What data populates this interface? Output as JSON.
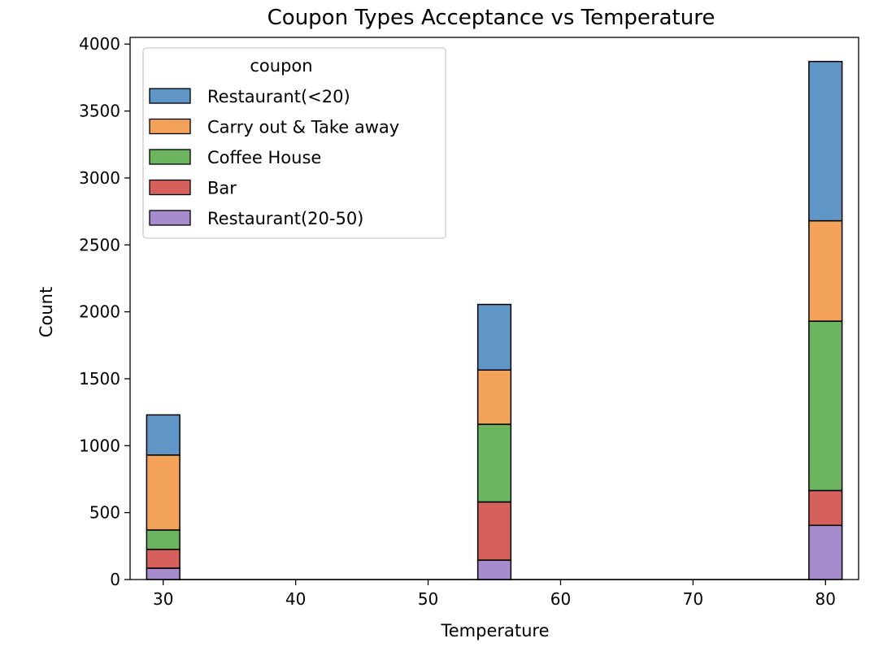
{
  "chart_data": {
    "type": "bar",
    "stacked": true,
    "title": "Coupon Types Acceptance vs Temperature",
    "xlabel": "Temperature",
    "ylabel": "Count",
    "xlim": [
      27.5,
      82.5
    ],
    "ylim": [
      0,
      4050
    ],
    "x_ticks": [
      "30",
      "40",
      "50",
      "60",
      "70",
      "80"
    ],
    "y_ticks": [
      "0",
      "500",
      "1000",
      "1500",
      "2000",
      "2500",
      "3000",
      "3500",
      "4000"
    ],
    "categories": [
      30,
      55,
      80
    ],
    "bin_width": 2.5,
    "grid": false,
    "legend": {
      "title": "coupon",
      "placement": "top-left"
    },
    "series": [
      {
        "name": "Restaurant(20-50)",
        "color": "#a68ccc",
        "values": [
          85,
          145,
          405
        ]
      },
      {
        "name": "Bar",
        "color": "#d6605c",
        "values": [
          140,
          435,
          260
        ]
      },
      {
        "name": "Coffee House",
        "color": "#6bb55e",
        "values": [
          145,
          580,
          1265
        ]
      },
      {
        "name": "Carry out & Take away",
        "color": "#f2a359",
        "values": [
          560,
          405,
          750
        ]
      },
      {
        "name": "Restaurant(<20)",
        "color": "#6096c6",
        "values": [
          300,
          490,
          1190
        ]
      }
    ],
    "legend_order": [
      "Restaurant(<20)",
      "Carry out & Take away",
      "Coffee House",
      "Bar",
      "Restaurant(20-50)"
    ]
  }
}
